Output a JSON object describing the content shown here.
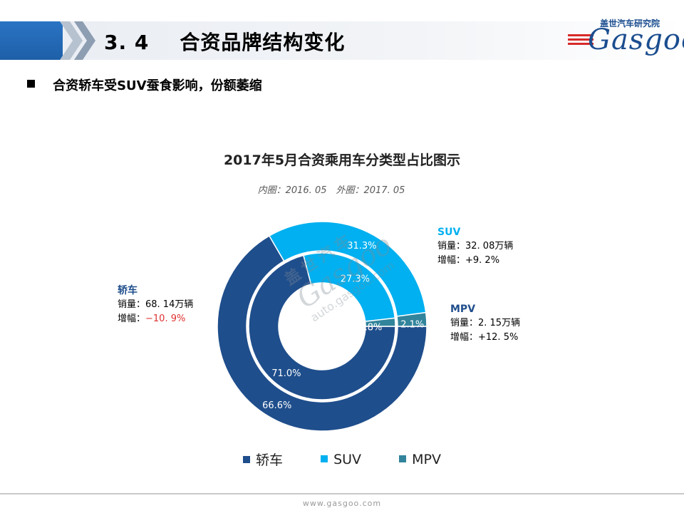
{
  "header": {
    "section_number": "3. 4",
    "section_title": "合资品牌结构变化"
  },
  "logo": {
    "cn": "盖世汽车研究院",
    "word": "Gasgoo"
  },
  "bullet": {
    "text": "合资轿车受SUV蚕食影响，份额萎缩"
  },
  "chart_data": {
    "type": "pie",
    "title": "2017年5月合资乘用车分类型占比图示",
    "subtitle": "内圈：2016. 05　外圈：2017. 05",
    "categories": [
      "轿车",
      "SUV",
      "MPV"
    ],
    "colors": [
      "#1f4e8c",
      "#00b0f0",
      "#31849b"
    ],
    "series": [
      {
        "values": [
          71.0,
          27.3,
          1.8
        ],
        "labels": [
          "71.0%",
          "27.3%",
          "1.8%"
        ]
      },
      {
        "values": [
          66.6,
          31.3,
          2.1
        ],
        "labels": [
          "66.6%",
          "31.3%",
          "2.1%"
        ]
      }
    ],
    "legend_position": "bottom"
  },
  "annotations": {
    "sedan": {
      "name": "轿车",
      "sales": "销量：68. 14万辆",
      "growth_label": "增幅：",
      "growth_value": "−10. 9%"
    },
    "suv": {
      "name": "SUV",
      "sales": "销量：32. 08万辆",
      "growth": "增幅：+9. 2%"
    },
    "mpv": {
      "name": "MPV",
      "sales": "销量：2. 15万辆",
      "growth": "增幅：+12. 5%"
    }
  },
  "watermark": {
    "cn": "盖世汽车",
    "word": "Gasgoo",
    "url": "auto.gasgoo.com"
  },
  "footer": {
    "url": "www.gasgoo.com"
  }
}
